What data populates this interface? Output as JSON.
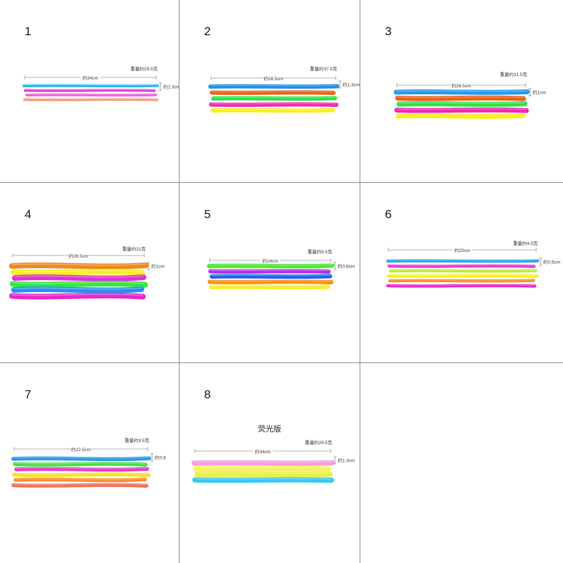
{
  "panels": [
    {
      "number": "1",
      "length": "约34cm",
      "weight": "重量约29.5克",
      "diameter": "约1.3cm",
      "colors": [
        "#28b8e8",
        "#e040d0",
        "#e868d8",
        "#f0a080"
      ]
    },
    {
      "number": "2",
      "length": "约28.5cm",
      "weight": "重量约37.5克",
      "diameter": "约1.3cm",
      "colors": [
        "#2090e8",
        "#f06a20",
        "#2ee04a",
        "#f028b0",
        "#f8f020"
      ]
    },
    {
      "number": "3",
      "length": "约26.5cm",
      "weight": "重量约21.5克",
      "diameter": "约1cm",
      "colors": [
        "#2898e8",
        "#f06a20",
        "#2ee04a",
        "#f028b0",
        "#f8f020"
      ]
    },
    {
      "number": "4",
      "length": "约26.5cm",
      "weight": "重量约21克",
      "diameter": "约1cm",
      "colors": [
        "#f08818",
        "#f8f020",
        "#e030d8",
        "#30e840",
        "#2890f0",
        "#e828c8"
      ]
    },
    {
      "number": "5",
      "length": "约24cm",
      "weight": "重量约9.5克",
      "diameter": "约0.8cm",
      "colors": [
        "#48ea30",
        "#b030e8",
        "#2060f0",
        "#f89018",
        "#f8f020"
      ]
    },
    {
      "number": "6",
      "length": "约20cm",
      "weight": "重量约4.5克",
      "diameter": "约0.5cm",
      "colors": [
        "#28a8f0",
        "#e838d0",
        "#b8f030",
        "#f8f020",
        "#f89028",
        "#e828c8"
      ]
    },
    {
      "number": "7",
      "length": "约22.5cm",
      "weight": "重量约9.5克",
      "diameter": "约0.8",
      "colors": [
        "#2898e8",
        "#48e040",
        "#e838d0",
        "#f8e020",
        "#f89030",
        "#f07060"
      ]
    },
    {
      "number": "8",
      "note": "荧光版",
      "length": "约34cm",
      "weight": "重量约29.5克",
      "diameter": "约1.3cm",
      "colors": [
        "#f0a0e0",
        "#f8f060",
        "#e8f048",
        "#38c8f0"
      ]
    }
  ]
}
